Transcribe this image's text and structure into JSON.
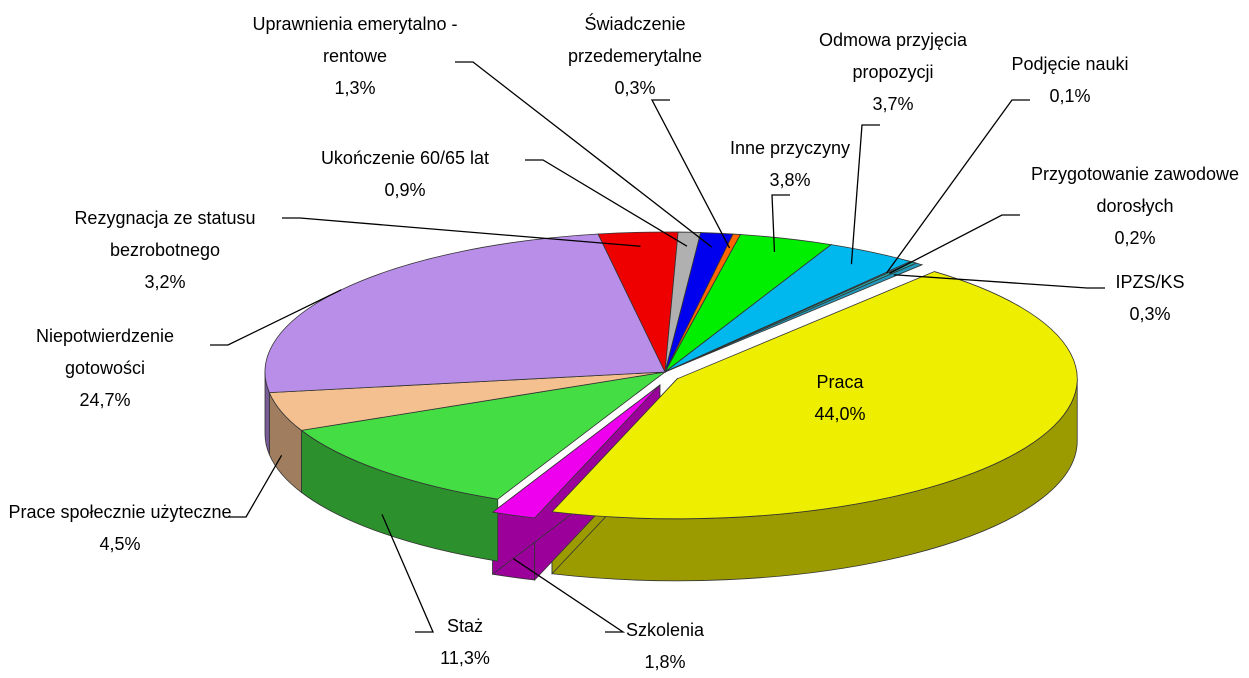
{
  "chart_data": {
    "type": "pie",
    "categories": [
      "Praca",
      "Szkolenia",
      "Staż",
      "Prace społecznie użyteczne",
      "Niepotwierdzenie gotowości",
      "Rezygnacja ze statusu bezrobotnego",
      "Ukończenie 60/65 lat",
      "Uprawnienia emerytalno - rentowe",
      "Świadczenie przedemerytalne",
      "Inne przyczyny",
      "Odmowa przyjęcia propozycji",
      "Podjęcie nauki",
      "Przygotowanie zawodowe dorosłych",
      "IPZS/KS"
    ],
    "values": [
      44.0,
      1.8,
      11.3,
      4.5,
      24.7,
      3.2,
      0.9,
      1.3,
      0.3,
      3.8,
      3.7,
      0.1,
      0.2,
      0.3
    ],
    "value_labels": [
      "44,0%",
      "1,8%",
      "11,3%",
      "4,5%",
      "24,7%",
      "3,2%",
      "0,9%",
      "1,3%",
      "0,3%",
      "3,8%",
      "3,7%",
      "0,1%",
      "0,2%",
      "0,3%"
    ],
    "colors": [
      "#eeee00",
      "#ee00ee",
      "#44dd44",
      "#f4c090",
      "#b88ee8",
      "#ee0000",
      "#b0b0b0",
      "#0000ee",
      "#ff6600",
      "#00ee00",
      "#00b8ee",
      "#4488aa",
      "#22aaaa",
      "#2299bb"
    ]
  }
}
